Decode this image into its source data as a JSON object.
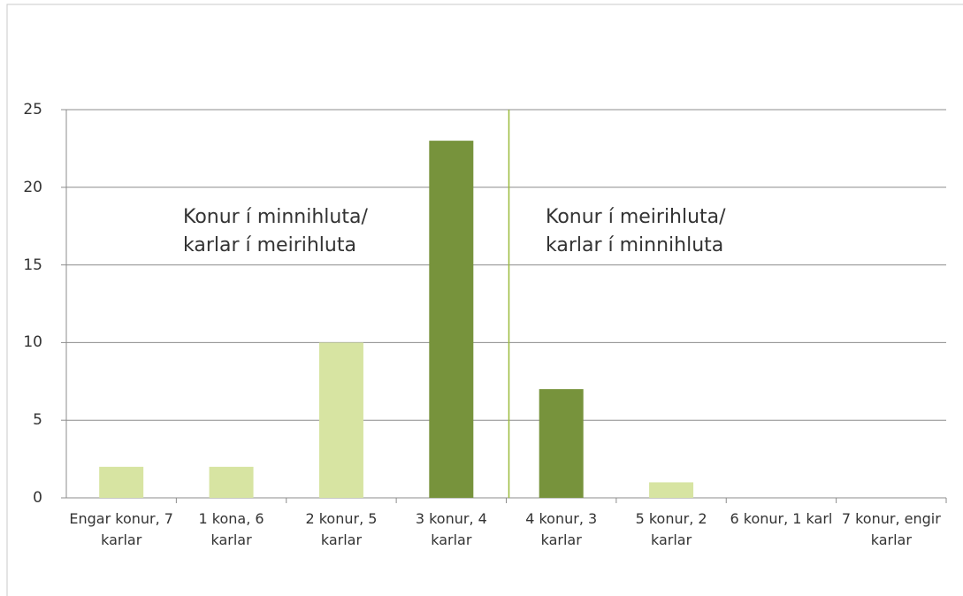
{
  "chart_data": {
    "type": "bar",
    "categories": [
      "Engar konur, 7 karlar",
      "1 kona, 6 karlar",
      "2 konur, 5 karlar",
      "3 konur, 4 karlar",
      "4 konur, 3 karlar",
      "5 konur, 2 karlar",
      "6 konur, 1 karl",
      "7 konur, engir karlar"
    ],
    "values": [
      2,
      2,
      10,
      23,
      7,
      1,
      0,
      0
    ],
    "colors": [
      "#d7e4a2",
      "#d7e4a2",
      "#d7e4a2",
      "#77933c",
      "#77933c",
      "#d7e4a2",
      "#d7e4a2",
      "#d7e4a2"
    ],
    "ylim": [
      0,
      25
    ],
    "yticks": [
      0,
      5,
      10,
      15,
      20,
      25
    ],
    "grid": true,
    "annotations": [
      "Konur í minnihluta/\nkarlar í meirihluta",
      "Konur í meirihluta/\nkarlar í minnihluta"
    ]
  }
}
